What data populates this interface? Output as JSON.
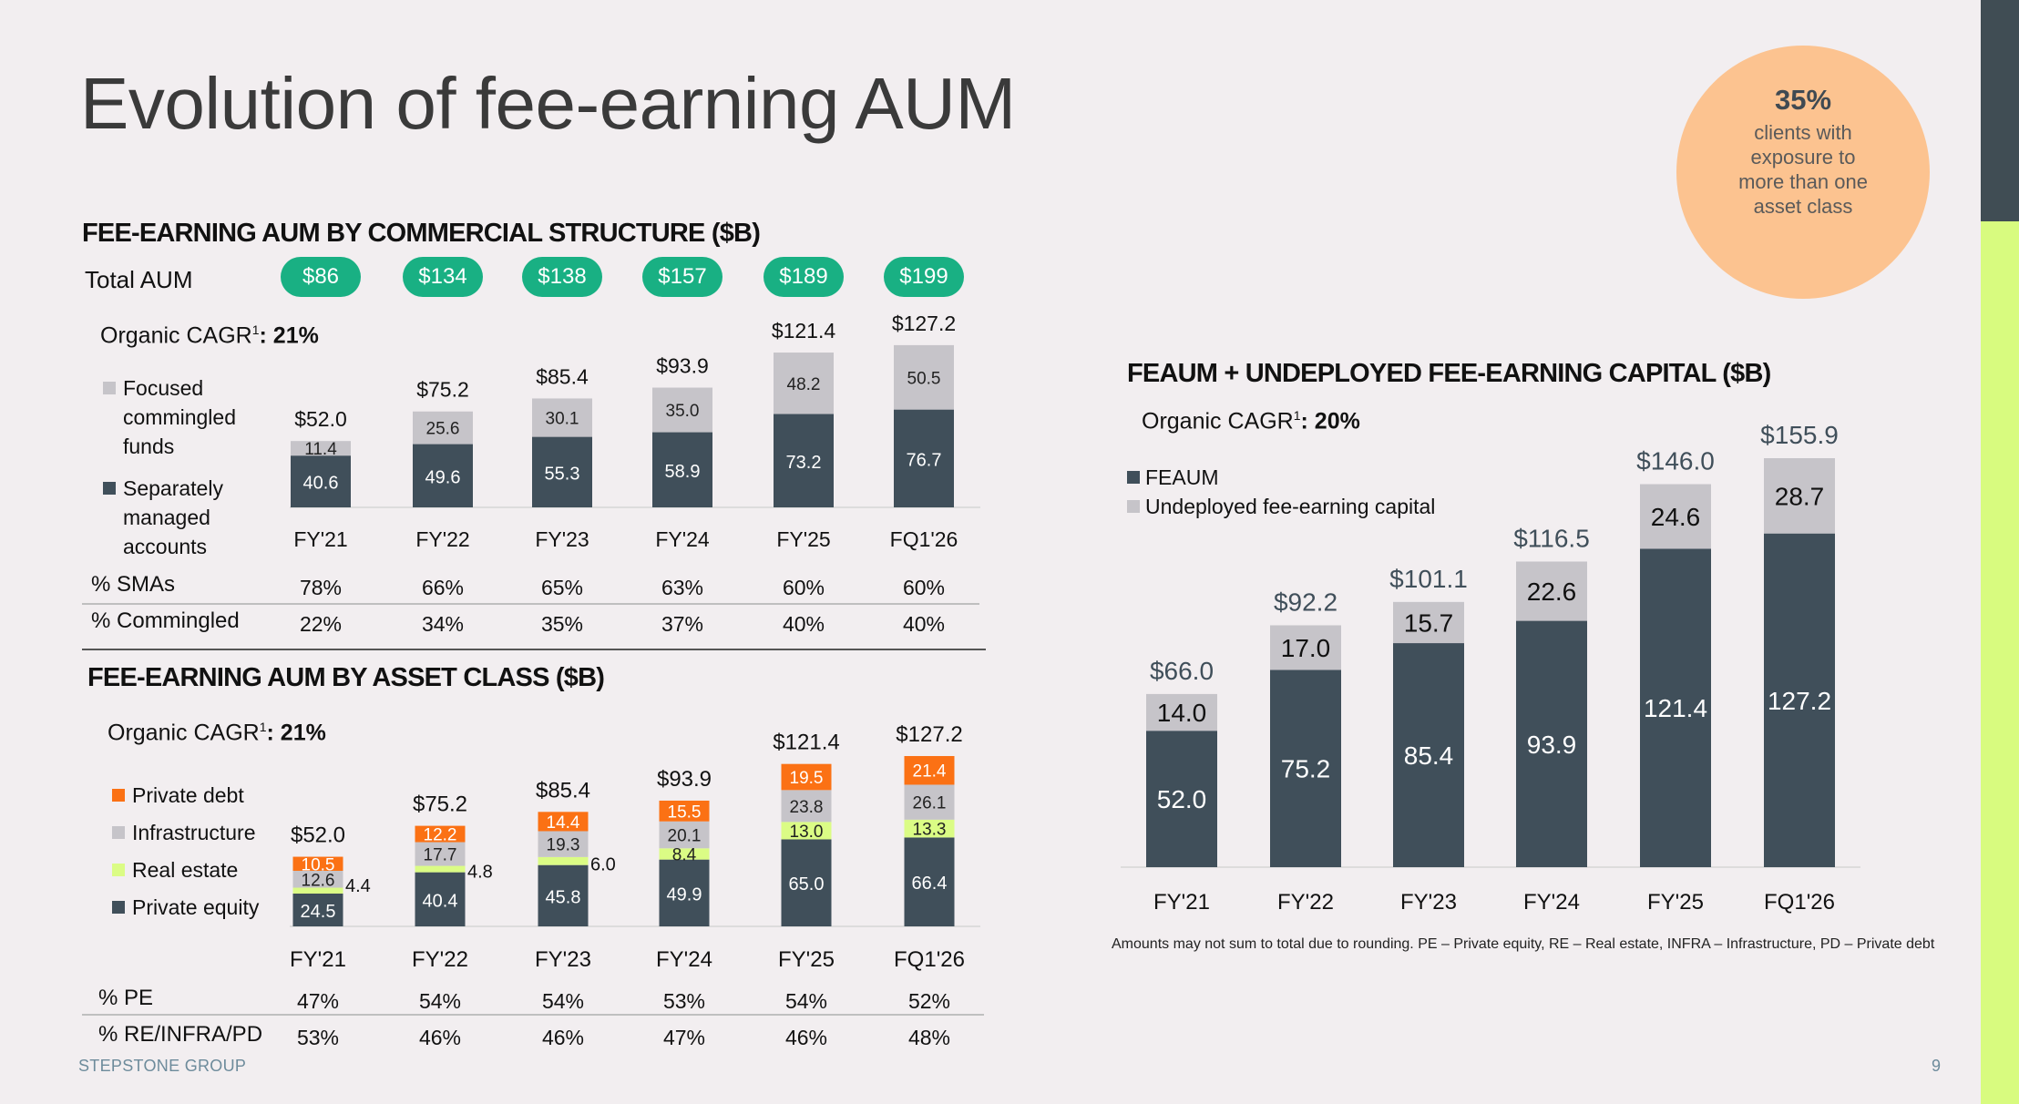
{
  "slide": {
    "title": "Evolution of fee-earning AUM",
    "brand": "STEPSTONE GROUP",
    "page_number": "9",
    "footnote": "Amounts may not sum to total due to rounding. PE – Private equity, RE – Real estate, INFRA – Infrastructure, PD – Private debt"
  },
  "badge": {
    "value": "35%",
    "text": "clients with exposure to more than one asset class"
  },
  "colors": {
    "dark": "#404f5a",
    "light": "#c6c4c9",
    "green": "#19b083",
    "private_debt": "#fb7114",
    "real_estate": "#dbfc85",
    "badge": "#fcc390"
  },
  "chart_data": [
    {
      "id": "commercial",
      "type": "bar",
      "stacked": true,
      "title": "FEE-EARNING AUM BY COMMERCIAL STRUCTURE ($B)",
      "cagr_label": "Organic CAGR",
      "cagr_sup": "1",
      "cagr_value": ": 21%",
      "categories": [
        "FY'21",
        "FY'22",
        "FY'23",
        "FY'24",
        "FY'25",
        "FQ1'26"
      ],
      "totals": [
        "$52.0",
        "$75.2",
        "$85.4",
        "$93.9",
        "$121.4",
        "$127.2"
      ],
      "series": [
        {
          "name": "Separately managed accounts",
          "values": [
            40.6,
            49.6,
            55.3,
            58.9,
            73.2,
            76.7
          ]
        },
        {
          "name": "Focused commingled funds",
          "values": [
            11.4,
            25.6,
            30.1,
            35.0,
            48.2,
            50.5
          ]
        }
      ],
      "total_aum": {
        "label": "Total AUM",
        "values": [
          "$86",
          "$134",
          "$138",
          "$157",
          "$189",
          "$199"
        ]
      },
      "pct_rows": [
        {
          "label": "% SMAs",
          "values": [
            "78%",
            "66%",
            "65%",
            "63%",
            "60%",
            "60%"
          ]
        },
        {
          "label": "% Commingled",
          "values": [
            "22%",
            "34%",
            "35%",
            "37%",
            "40%",
            "40%"
          ]
        }
      ]
    },
    {
      "id": "asset",
      "type": "bar",
      "stacked": true,
      "title": "FEE-EARNING AUM BY ASSET CLASS ($B)",
      "cagr_label": "Organic CAGR",
      "cagr_sup": "1",
      "cagr_value": ": 21%",
      "categories": [
        "FY'21",
        "FY'22",
        "FY'23",
        "FY'24",
        "FY'25",
        "FQ1'26"
      ],
      "totals": [
        "$52.0",
        "$75.2",
        "$85.4",
        "$93.9",
        "$121.4",
        "$127.2"
      ],
      "series": [
        {
          "name": "Private equity",
          "values": [
            24.5,
            40.4,
            45.8,
            49.9,
            65.0,
            66.4
          ]
        },
        {
          "name": "Real estate",
          "values": [
            4.4,
            4.8,
            6.0,
            8.4,
            13.0,
            13.3
          ]
        },
        {
          "name": "Infrastructure",
          "values": [
            12.6,
            17.7,
            19.3,
            20.1,
            23.8,
            26.1
          ]
        },
        {
          "name": "Private debt",
          "values": [
            10.5,
            12.2,
            14.4,
            15.5,
            19.5,
            21.4
          ]
        }
      ],
      "pct_rows": [
        {
          "label": "% PE",
          "values": [
            "47%",
            "54%",
            "54%",
            "53%",
            "54%",
            "52%"
          ]
        },
        {
          "label": "% RE/INFRA/PD",
          "values": [
            "53%",
            "46%",
            "46%",
            "47%",
            "46%",
            "48%"
          ]
        }
      ]
    },
    {
      "id": "undeployed",
      "type": "bar",
      "stacked": true,
      "title": "FEAUM + UNDEPLOYED FEE-EARNING CAPITAL ($B)",
      "cagr_label": "Organic CAGR",
      "cagr_sup": "1",
      "cagr_value": ": 20%",
      "categories": [
        "FY'21",
        "FY'22",
        "FY'23",
        "FY'24",
        "FY'25",
        "FQ1'26"
      ],
      "totals": [
        "$66.0",
        "$92.2",
        "$101.1",
        "$116.5",
        "$146.0",
        "$155.9"
      ],
      "series": [
        {
          "name": "FEAUM",
          "values": [
            52.0,
            75.2,
            85.4,
            93.9,
            121.4,
            127.2
          ]
        },
        {
          "name": "Undeployed fee-earning capital",
          "values": [
            14.0,
            17.0,
            15.7,
            22.6,
            24.6,
            28.7
          ]
        }
      ]
    }
  ]
}
